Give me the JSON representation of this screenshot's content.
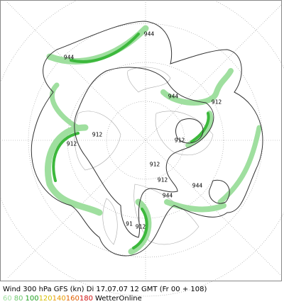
{
  "contour_labels": [
    "944",
    "944",
    "944",
    "944",
    "944",
    "912",
    "912",
    "912",
    "912",
    "912",
    "912",
    "91",
    "912"
  ],
  "caption": "Wind 300 hPa GFS (kn) Di 17.07.07 12 GMT (Fr 00 + 108)",
  "legend": [
    {
      "label": 60,
      "color": "#9fdf9f"
    },
    {
      "label": 80,
      "color": "#6cc86c"
    },
    {
      "label": 100,
      "color": "#1f9f1f"
    },
    {
      "label": 120,
      "color": "#d8c000"
    },
    {
      "label": 140,
      "color": "#e89a00"
    },
    {
      "label": 160,
      "color": "#e06000"
    },
    {
      "label": 180,
      "color": "#d01010"
    }
  ],
  "credit": "WetterOnline"
}
